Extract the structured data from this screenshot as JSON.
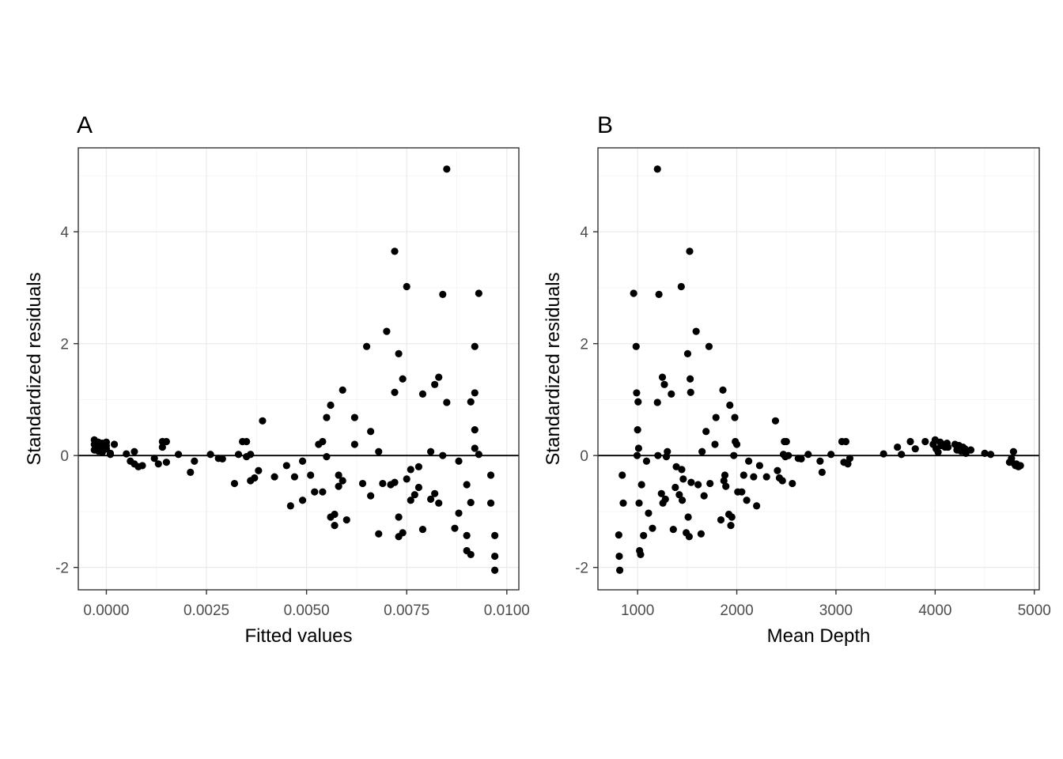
{
  "chart_data": [
    {
      "type": "scatter",
      "panel_tag": "A",
      "xlabel": "Fitted values",
      "ylabel": "Standardized residuals",
      "xlim": [
        -0.0007,
        0.0103
      ],
      "ylim": [
        -2.4,
        5.5
      ],
      "xticks": [
        0.0,
        0.0025,
        0.005,
        0.0075,
        0.01
      ],
      "xtick_labels": [
        "0.0000",
        "0.0025",
        "0.0050",
        "0.0075",
        "0.0100"
      ],
      "yticks": [
        -2,
        0,
        2,
        4
      ],
      "ytick_labels": [
        "-2",
        "0",
        "2",
        "4"
      ],
      "hline": 0,
      "grid": true,
      "points": [
        [
          -0.0003,
          0.28
        ],
        [
          -0.0002,
          0.24
        ],
        [
          -0.0003,
          0.2
        ],
        [
          -0.0002,
          0.15
        ],
        [
          -0.0003,
          0.1
        ],
        [
          -0.0001,
          0.06
        ],
        [
          0.0,
          0.24
        ],
        [
          -0.0001,
          0.12
        ],
        [
          0.0,
          0.18
        ],
        [
          0.0001,
          0.04
        ],
        [
          0.0002,
          0.2
        ],
        [
          0.0001,
          0.02
        ],
        [
          -0.0002,
          0.08
        ],
        [
          0.0,
          0.12
        ],
        [
          -0.0002,
          0.18
        ],
        [
          -0.0001,
          0.22
        ],
        [
          0.0005,
          0.03
        ],
        [
          0.0006,
          -0.1
        ],
        [
          0.0007,
          0.07
        ],
        [
          0.0007,
          -0.15
        ],
        [
          0.0008,
          -0.2
        ],
        [
          0.0009,
          -0.18
        ],
        [
          0.0012,
          -0.05
        ],
        [
          0.0013,
          -0.15
        ],
        [
          0.0014,
          0.15
        ],
        [
          0.0014,
          0.25
        ],
        [
          0.0015,
          0.25
        ],
        [
          0.0015,
          -0.12
        ],
        [
          0.0018,
          0.02
        ],
        [
          0.0021,
          -0.3
        ],
        [
          0.0022,
          -0.1
        ],
        [
          0.0026,
          0.02
        ],
        [
          0.0028,
          -0.05
        ],
        [
          0.0029,
          -0.06
        ],
        [
          0.0032,
          -0.5
        ],
        [
          0.0033,
          0.02
        ],
        [
          0.0034,
          0.25
        ],
        [
          0.0035,
          -0.02
        ],
        [
          0.0035,
          0.25
        ],
        [
          0.0036,
          -0.45
        ],
        [
          0.0036,
          0.02
        ],
        [
          0.0037,
          -0.4
        ],
        [
          0.0038,
          -0.27
        ],
        [
          0.0039,
          0.62
        ],
        [
          0.0042,
          -0.38
        ],
        [
          0.0045,
          -0.18
        ],
        [
          0.0046,
          -0.9
        ],
        [
          0.0047,
          -0.38
        ],
        [
          0.0049,
          -0.8
        ],
        [
          0.0049,
          -0.1
        ],
        [
          0.0051,
          -0.35
        ],
        [
          0.0052,
          -0.65
        ],
        [
          0.0053,
          0.2
        ],
        [
          0.0054,
          -0.65
        ],
        [
          0.0054,
          0.25
        ],
        [
          0.0055,
          0.68
        ],
        [
          0.0055,
          -0.02
        ],
        [
          0.0056,
          0.9
        ],
        [
          0.0056,
          -1.1
        ],
        [
          0.0057,
          -1.05
        ],
        [
          0.0057,
          -1.25
        ],
        [
          0.0058,
          -0.35
        ],
        [
          0.0058,
          -0.55
        ],
        [
          0.0059,
          -0.45
        ],
        [
          0.0059,
          1.17
        ],
        [
          0.006,
          -1.15
        ],
        [
          0.0062,
          0.68
        ],
        [
          0.0062,
          0.2
        ],
        [
          0.0064,
          -0.5
        ],
        [
          0.0065,
          1.95
        ],
        [
          0.0066,
          0.43
        ],
        [
          0.0066,
          -0.72
        ],
        [
          0.0068,
          0.07
        ],
        [
          0.0068,
          -1.4
        ],
        [
          0.0069,
          -0.5
        ],
        [
          0.007,
          2.22
        ],
        [
          0.0071,
          -0.52
        ],
        [
          0.0072,
          1.13
        ],
        [
          0.0072,
          -0.48
        ],
        [
          0.0072,
          3.65
        ],
        [
          0.0073,
          1.82
        ],
        [
          0.0073,
          -1.1
        ],
        [
          0.0073,
          -1.45
        ],
        [
          0.0074,
          1.37
        ],
        [
          0.0074,
          -1.38
        ],
        [
          0.0075,
          -0.42
        ],
        [
          0.0075,
          3.02
        ],
        [
          0.0076,
          -0.8
        ],
        [
          0.0076,
          -0.25
        ],
        [
          0.0077,
          -0.7
        ],
        [
          0.0078,
          -0.2
        ],
        [
          0.0078,
          -0.57
        ],
        [
          0.0079,
          1.1
        ],
        [
          0.0079,
          -1.32
        ],
        [
          0.0081,
          0.07
        ],
        [
          0.0081,
          -0.78
        ],
        [
          0.0082,
          1.27
        ],
        [
          0.0082,
          -0.68
        ],
        [
          0.0083,
          1.4
        ],
        [
          0.0083,
          -0.85
        ],
        [
          0.0084,
          0.0
        ],
        [
          0.0084,
          2.88
        ],
        [
          0.0085,
          0.95
        ],
        [
          0.0085,
          5.12
        ],
        [
          0.0087,
          -1.3
        ],
        [
          0.0088,
          -1.03
        ],
        [
          0.0088,
          -0.1
        ],
        [
          0.009,
          -1.43
        ],
        [
          0.009,
          -0.52
        ],
        [
          0.009,
          -1.7
        ],
        [
          0.0091,
          -1.77
        ],
        [
          0.0091,
          0.96
        ],
        [
          0.0091,
          -0.84
        ],
        [
          0.0092,
          0.13
        ],
        [
          0.0092,
          0.46
        ],
        [
          0.0092,
          1.12
        ],
        [
          0.0092,
          1.95
        ],
        [
          0.0093,
          2.9
        ],
        [
          0.0093,
          0.02
        ],
        [
          0.0096,
          -0.35
        ],
        [
          0.0096,
          -0.85
        ],
        [
          0.0097,
          -1.43
        ],
        [
          0.0097,
          -1.8
        ],
        [
          0.0097,
          -2.05
        ]
      ]
    },
    {
      "type": "scatter",
      "panel_tag": "B",
      "xlabel": "Mean Depth",
      "ylabel": "Standardized residuals",
      "xlim": [
        600,
        5050
      ],
      "ylim": [
        -2.4,
        5.5
      ],
      "xticks": [
        1000,
        2000,
        3000,
        4000,
        5000
      ],
      "xtick_labels": [
        "1000",
        "2000",
        "3000",
        "4000",
        "5000"
      ],
      "yticks": [
        -2,
        0,
        2,
        4
      ],
      "ytick_labels": [
        "-2",
        "0",
        "2",
        "4"
      ],
      "hline": 0,
      "grid": true,
      "points": [
        [
          810,
          -1.42
        ],
        [
          815,
          -1.8
        ],
        [
          820,
          -2.05
        ],
        [
          845,
          -0.35
        ],
        [
          855,
          -0.85
        ],
        [
          960,
          2.9
        ],
        [
          985,
          1.95
        ],
        [
          990,
          1.12
        ],
        [
          995,
          0.0
        ],
        [
          1000,
          0.46
        ],
        [
          1005,
          0.96
        ],
        [
          1010,
          0.13
        ],
        [
          1015,
          -0.85
        ],
        [
          1020,
          -1.7
        ],
        [
          1030,
          -1.77
        ],
        [
          1040,
          -0.52
        ],
        [
          1060,
          -1.43
        ],
        [
          1090,
          -0.1
        ],
        [
          1110,
          -1.03
        ],
        [
          1150,
          -1.3
        ],
        [
          1200,
          5.12
        ],
        [
          1200,
          0.95
        ],
        [
          1205,
          0.0
        ],
        [
          1215,
          2.88
        ],
        [
          1240,
          -0.68
        ],
        [
          1250,
          1.4
        ],
        [
          1255,
          -0.85
        ],
        [
          1270,
          1.27
        ],
        [
          1280,
          -0.78
        ],
        [
          1290,
          -0.02
        ],
        [
          1300,
          0.07
        ],
        [
          1340,
          1.1
        ],
        [
          1360,
          -1.32
        ],
        [
          1380,
          -0.57
        ],
        [
          1390,
          -0.2
        ],
        [
          1420,
          -0.7
        ],
        [
          1440,
          3.02
        ],
        [
          1445,
          -0.25
        ],
        [
          1450,
          -0.8
        ],
        [
          1460,
          -0.42
        ],
        [
          1490,
          -1.38
        ],
        [
          1505,
          1.82
        ],
        [
          1510,
          -1.1
        ],
        [
          1520,
          -1.45
        ],
        [
          1525,
          3.65
        ],
        [
          1530,
          1.37
        ],
        [
          1535,
          1.13
        ],
        [
          1540,
          -0.48
        ],
        [
          1590,
          2.22
        ],
        [
          1610,
          -0.52
        ],
        [
          1640,
          -1.4
        ],
        [
          1650,
          0.07
        ],
        [
          1670,
          -0.72
        ],
        [
          1690,
          0.43
        ],
        [
          1720,
          1.95
        ],
        [
          1730,
          -0.5
        ],
        [
          1780,
          0.2
        ],
        [
          1790,
          0.68
        ],
        [
          1840,
          -1.15
        ],
        [
          1860,
          1.17
        ],
        [
          1870,
          -0.45
        ],
        [
          1880,
          -0.35
        ],
        [
          1890,
          -0.55
        ],
        [
          1920,
          -1.05
        ],
        [
          1930,
          0.9
        ],
        [
          1940,
          -1.25
        ],
        [
          1950,
          -1.1
        ],
        [
          1970,
          0.0
        ],
        [
          1980,
          0.68
        ],
        [
          1985,
          0.25
        ],
        [
          2000,
          0.2
        ],
        [
          2010,
          -0.65
        ],
        [
          2050,
          -0.65
        ],
        [
          2070,
          -0.35
        ],
        [
          2100,
          -0.8
        ],
        [
          2120,
          -0.1
        ],
        [
          2170,
          -0.38
        ],
        [
          2200,
          -0.9
        ],
        [
          2230,
          -0.18
        ],
        [
          2300,
          -0.38
        ],
        [
          2390,
          0.62
        ],
        [
          2410,
          -0.27
        ],
        [
          2430,
          -0.4
        ],
        [
          2460,
          -0.45
        ],
        [
          2470,
          0.02
        ],
        [
          2480,
          0.25
        ],
        [
          2490,
          -0.02
        ],
        [
          2500,
          0.25
        ],
        [
          2520,
          0.0
        ],
        [
          2560,
          -0.5
        ],
        [
          2620,
          -0.05
        ],
        [
          2650,
          -0.06
        ],
        [
          2720,
          0.02
        ],
        [
          2840,
          -0.1
        ],
        [
          2860,
          -0.3
        ],
        [
          2950,
          0.02
        ],
        [
          3060,
          0.25
        ],
        [
          3080,
          -0.12
        ],
        [
          3100,
          0.25
        ],
        [
          3120,
          -0.15
        ],
        [
          3140,
          -0.05
        ],
        [
          3480,
          0.03
        ],
        [
          3620,
          0.15
        ],
        [
          3660,
          0.02
        ],
        [
          3750,
          0.25
        ],
        [
          3800,
          0.12
        ],
        [
          3900,
          0.25
        ],
        [
          3980,
          0.2
        ],
        [
          4000,
          0.28
        ],
        [
          4010,
          0.12
        ],
        [
          4030,
          0.06
        ],
        [
          4050,
          0.24
        ],
        [
          4060,
          0.18
        ],
        [
          4080,
          0.2
        ],
        [
          4100,
          0.15
        ],
        [
          4120,
          0.22
        ],
        [
          4130,
          0.15
        ],
        [
          4200,
          0.2
        ],
        [
          4220,
          0.1
        ],
        [
          4240,
          0.18
        ],
        [
          4260,
          0.08
        ],
        [
          4280,
          0.15
        ],
        [
          4300,
          0.12
        ],
        [
          4310,
          0.04
        ],
        [
          4360,
          0.1
        ],
        [
          4500,
          0.04
        ],
        [
          4560,
          0.02
        ],
        [
          4750,
          -0.12
        ],
        [
          4770,
          -0.05
        ],
        [
          4790,
          0.07
        ],
        [
          4800,
          -0.15
        ],
        [
          4810,
          -0.18
        ],
        [
          4820,
          -0.15
        ],
        [
          4840,
          -0.2
        ],
        [
          4860,
          -0.18
        ]
      ]
    }
  ]
}
